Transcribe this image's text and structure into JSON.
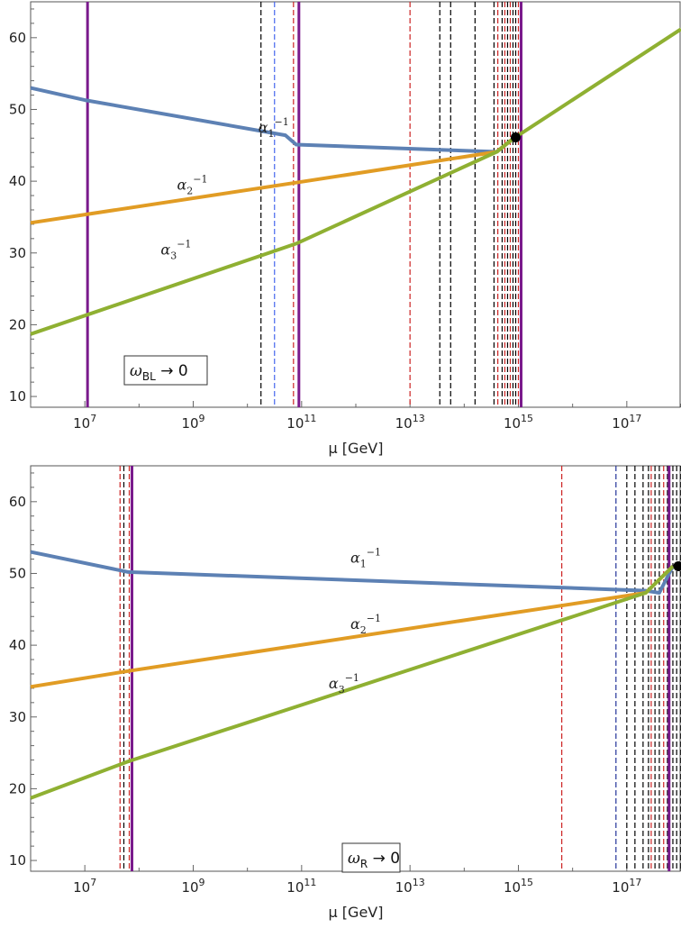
{
  "chart_data": [
    {
      "type": "line",
      "xscale": "log10",
      "xlim": [
        1000000,
        1000000000000000000
      ],
      "ylim": [
        8.5,
        65
      ],
      "xlabel": "μ [GeV]",
      "x_ticks": [
        {
          "pow": 7,
          "label": "10",
          "exp": "7"
        },
        {
          "pow": 9,
          "label": "10",
          "exp": "9"
        },
        {
          "pow": 11,
          "label": "10",
          "exp": "11"
        },
        {
          "pow": 13,
          "label": "10",
          "exp": "13"
        },
        {
          "pow": 15,
          "label": "10",
          "exp": "15"
        },
        {
          "pow": 17,
          "label": "10",
          "exp": "17"
        }
      ],
      "y_ticks": [
        10,
        20,
        30,
        40,
        50,
        60
      ],
      "annotation": {
        "main": "ω",
        "sub": "BL",
        "tail": " → 0"
      },
      "series": [
        {
          "name": "α1⁻¹",
          "label_base": "α",
          "label_sub": "1",
          "label_sup": "−1",
          "color": "#5d81b4",
          "label_at": {
            "log_x": 10.2,
            "y": 46.8
          },
          "points": [
            [
              6,
              53
            ],
            [
              7,
              51.3
            ],
            [
              10.7,
              46.4
            ],
            [
              10.9,
              45.1
            ],
            [
              14.6,
              44.1
            ],
            [
              14.9,
              45.9
            ]
          ]
        },
        {
          "name": "α2⁻¹",
          "label_base": "α",
          "label_sub": "2",
          "label_sup": "−1",
          "color": "#e19c24",
          "label_at": {
            "log_x": 8.7,
            "y": 38.8
          },
          "points": [
            [
              6,
              34.2
            ],
            [
              10.9,
              39.8
            ],
            [
              14.6,
              44.1
            ],
            [
              14.9,
              45.9
            ]
          ]
        },
        {
          "name": "α3⁻¹",
          "label_base": "α",
          "label_sub": "3",
          "label_sup": "−1",
          "color": "#8fb032",
          "label_at": {
            "log_x": 8.4,
            "y": 29.8
          },
          "points": [
            [
              6,
              18.7
            ],
            [
              10.9,
              31.3
            ],
            [
              14.6,
              44.1
            ],
            [
              14.9,
              45.9
            ],
            [
              18,
              61.2
            ]
          ]
        }
      ],
      "unification_point": {
        "log_x": 14.95,
        "y": 46.1
      },
      "vertical_lines": [
        {
          "log_x": 7.05,
          "style": "solid",
          "color": "#7a1a8c"
        },
        {
          "log_x": 10.25,
          "style": "dashed",
          "color": "#000000"
        },
        {
          "log_x": 10.5,
          "style": "dashed",
          "color": "#4466ee"
        },
        {
          "log_x": 10.85,
          "style": "dashed",
          "color": "#cc2222"
        },
        {
          "log_x": 10.95,
          "style": "solid",
          "color": "#7a1a8c"
        },
        {
          "log_x": 13.0,
          "style": "dashed",
          "color": "#cc2222"
        },
        {
          "log_x": 13.55,
          "style": "dashed",
          "color": "#000000"
        },
        {
          "log_x": 13.75,
          "style": "dashed",
          "color": "#000000"
        },
        {
          "log_x": 14.2,
          "style": "dashed",
          "color": "#000000"
        },
        {
          "log_x": 14.55,
          "style": "dashed",
          "color": "#000000"
        },
        {
          "log_x": 14.62,
          "style": "dashed",
          "color": "#cc2222"
        },
        {
          "log_x": 14.7,
          "style": "dashed",
          "color": "#000000"
        },
        {
          "log_x": 14.75,
          "style": "dashed",
          "color": "#cc2222"
        },
        {
          "log_x": 14.8,
          "style": "dashed",
          "color": "#000000"
        },
        {
          "log_x": 14.85,
          "style": "dashed",
          "color": "#cc2222"
        },
        {
          "log_x": 14.9,
          "style": "dashed",
          "color": "#000000"
        },
        {
          "log_x": 14.95,
          "style": "dashed",
          "color": "#000000"
        },
        {
          "log_x": 15.0,
          "style": "dashed",
          "color": "#cc2222"
        },
        {
          "log_x": 15.05,
          "style": "solid",
          "color": "#7a1a8c"
        }
      ]
    },
    {
      "type": "line",
      "xscale": "log10",
      "xlim": [
        1000000,
        1000000000000000000
      ],
      "ylim": [
        8.5,
        65
      ],
      "xlabel": "μ [GeV]",
      "x_ticks": [
        {
          "pow": 7,
          "label": "10",
          "exp": "7"
        },
        {
          "pow": 9,
          "label": "10",
          "exp": "9"
        },
        {
          "pow": 11,
          "label": "10",
          "exp": "11"
        },
        {
          "pow": 13,
          "label": "10",
          "exp": "13"
        },
        {
          "pow": 15,
          "label": "10",
          "exp": "15"
        },
        {
          "pow": 17,
          "label": "10",
          "exp": "17"
        }
      ],
      "y_ticks": [
        10,
        20,
        30,
        40,
        50,
        60
      ],
      "annotation": {
        "main": "ω",
        "sub": "R",
        "tail": " → 0"
      },
      "series": [
        {
          "name": "α1⁻¹",
          "label_base": "α",
          "label_sub": "1",
          "label_sup": "−1",
          "color": "#5d81b4",
          "label_at": {
            "log_x": 11.9,
            "y": 51.5
          },
          "points": [
            [
              6,
              53
            ],
            [
              7.8,
              50.2
            ],
            [
              17.35,
              47.6
            ],
            [
              17.6,
              47.3
            ],
            [
              17.85,
              51.0
            ]
          ]
        },
        {
          "name": "α2⁻¹",
          "label_base": "α",
          "label_sub": "2",
          "label_sup": "−1",
          "color": "#e19c24",
          "label_at": {
            "log_x": 11.9,
            "y": 42.3
          },
          "points": [
            [
              6,
              34.2
            ],
            [
              7.8,
              36.4
            ],
            [
              17.35,
              47.3
            ],
            [
              17.85,
              51.0
            ]
          ]
        },
        {
          "name": "α3⁻¹",
          "label_base": "α",
          "label_sub": "3",
          "label_sup": "−1",
          "color": "#8fb032",
          "label_at": {
            "log_x": 11.5,
            "y": 34.0
          },
          "points": [
            [
              6,
              18.7
            ],
            [
              7.8,
              23.8
            ],
            [
              17.35,
              47.3
            ],
            [
              17.85,
              51.0
            ]
          ]
        }
      ],
      "unification_point": {
        "log_x": 17.95,
        "y": 51.0
      },
      "vertical_lines": [
        {
          "log_x": 7.65,
          "style": "dashed",
          "color": "#cc2222"
        },
        {
          "log_x": 7.72,
          "style": "dashed",
          "color": "#000000"
        },
        {
          "log_x": 7.82,
          "style": "dashed",
          "color": "#cc2222"
        },
        {
          "log_x": 7.87,
          "style": "solid",
          "color": "#7a1a8c"
        },
        {
          "log_x": 15.8,
          "style": "dashed",
          "color": "#cc2222"
        },
        {
          "log_x": 16.8,
          "style": "dashed",
          "color": "#223399"
        },
        {
          "log_x": 17.0,
          "style": "dashed",
          "color": "#000000"
        },
        {
          "log_x": 17.15,
          "style": "dashed",
          "color": "#000000"
        },
        {
          "log_x": 17.3,
          "style": "dashed",
          "color": "#000000"
        },
        {
          "log_x": 17.4,
          "style": "dashed",
          "color": "#000000"
        },
        {
          "log_x": 17.45,
          "style": "dashed",
          "color": "#cc2222"
        },
        {
          "log_x": 17.52,
          "style": "dashed",
          "color": "#000000"
        },
        {
          "log_x": 17.6,
          "style": "dashed",
          "color": "#000000"
        },
        {
          "log_x": 17.68,
          "style": "dashed",
          "color": "#cc2222"
        },
        {
          "log_x": 17.75,
          "style": "dashed",
          "color": "#000000"
        },
        {
          "log_x": 17.78,
          "style": "solid",
          "color": "#7a1a8c"
        },
        {
          "log_x": 17.85,
          "style": "dashed",
          "color": "#000000"
        },
        {
          "log_x": 17.92,
          "style": "dashed",
          "color": "#000000"
        },
        {
          "log_x": 18.0,
          "style": "dashed",
          "color": "#000000"
        }
      ]
    }
  ]
}
